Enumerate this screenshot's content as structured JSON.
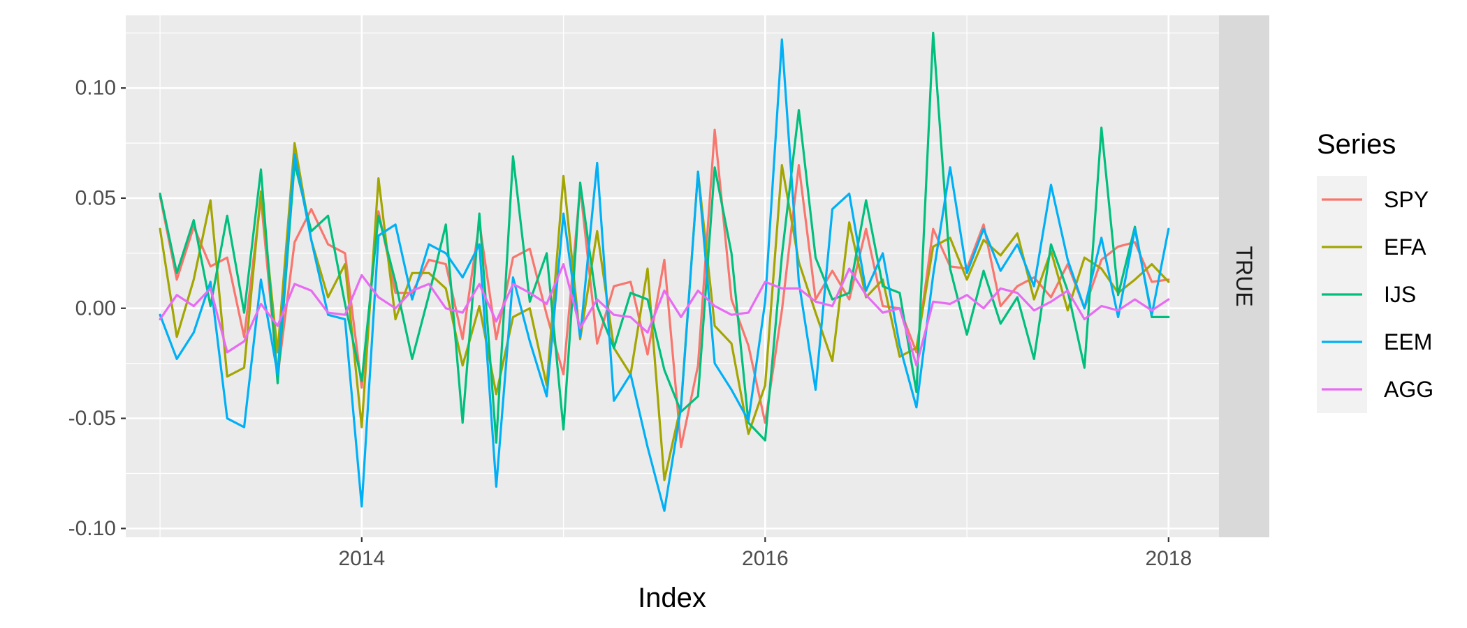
{
  "chart_data": {
    "type": "line",
    "xlabel": "Index",
    "ylabel": "",
    "facet_label": "TRUE",
    "legend_title": "Series",
    "legend_position": "right",
    "grid": true,
    "x_ticks": [
      2014,
      2016,
      2018
    ],
    "y_ticks": [
      -0.1,
      -0.05,
      0.0,
      0.05,
      0.1
    ],
    "y_tick_labels": [
      "-0.10",
      "-0.05",
      "0.00",
      "0.05",
      "0.10"
    ],
    "xlim": [
      2012.83,
      2018.25
    ],
    "ylim": [
      -0.104,
      0.133
    ],
    "x": [
      2013.0,
      2013.083,
      2013.167,
      2013.25,
      2013.333,
      2013.417,
      2013.5,
      2013.583,
      2013.667,
      2013.75,
      2013.833,
      2013.917,
      2014.0,
      2014.083,
      2014.167,
      2014.25,
      2014.333,
      2014.417,
      2014.5,
      2014.583,
      2014.667,
      2014.75,
      2014.833,
      2014.917,
      2015.0,
      2015.083,
      2015.167,
      2015.25,
      2015.333,
      2015.417,
      2015.5,
      2015.583,
      2015.667,
      2015.75,
      2015.833,
      2015.917,
      2016.0,
      2016.083,
      2016.167,
      2016.25,
      2016.333,
      2016.417,
      2016.5,
      2016.583,
      2016.667,
      2016.75,
      2016.833,
      2016.917,
      2017.0,
      2017.083,
      2017.167,
      2017.25,
      2017.333,
      2017.417,
      2017.5,
      2017.583,
      2017.667,
      2017.75,
      2017.833,
      2017.917,
      2018.0
    ],
    "series": [
      {
        "name": "SPY",
        "color": "#F8766D",
        "values": [
          0.051,
          0.013,
          0.037,
          0.019,
          0.023,
          -0.013,
          0.05,
          -0.031,
          0.03,
          0.045,
          0.029,
          0.025,
          -0.036,
          0.044,
          0.007,
          0.007,
          0.022,
          0.02,
          -0.014,
          0.039,
          -0.014,
          0.023,
          0.027,
          -0.003,
          -0.03,
          0.055,
          -0.016,
          0.01,
          0.012,
          -0.021,
          0.022,
          -0.063,
          -0.026,
          0.081,
          0.004,
          -0.017,
          -0.052,
          -0.001,
          0.065,
          0.004,
          0.017,
          0.004,
          0.036,
          0.001,
          0.0,
          -0.02,
          0.036,
          0.019,
          0.018,
          0.038,
          0.001,
          0.01,
          0.014,
          0.005,
          0.02,
          0.0,
          0.022,
          0.028,
          0.03,
          0.012,
          0.013
        ]
      },
      {
        "name": "EFA",
        "color": "#A3A500",
        "values": [
          0.036,
          -0.013,
          0.013,
          0.049,
          -0.031,
          -0.027,
          0.053,
          -0.02,
          0.075,
          0.031,
          0.005,
          0.02,
          -0.054,
          0.059,
          -0.005,
          0.016,
          0.016,
          0.009,
          -0.026,
          0.001,
          -0.039,
          -0.004,
          0.0,
          -0.035,
          0.06,
          -0.014,
          0.035,
          -0.018,
          -0.03,
          0.018,
          -0.078,
          -0.044,
          0.062,
          -0.008,
          -0.016,
          -0.057,
          -0.035,
          0.065,
          0.021,
          -0.002,
          -0.024,
          0.039,
          0.005,
          0.013,
          -0.022,
          -0.018,
          0.028,
          0.032,
          0.013,
          0.031,
          0.024,
          0.034,
          0.004,
          0.026,
          -0.001,
          0.023,
          0.018,
          0.007,
          0.013,
          0.02,
          0.012
        ]
      },
      {
        "name": "IJS",
        "color": "#00BF7D",
        "values": [
          0.052,
          0.016,
          0.04,
          0.001,
          0.042,
          -0.002,
          0.063,
          -0.034,
          0.066,
          0.035,
          0.042,
          0.002,
          -0.033,
          0.042,
          0.012,
          -0.023,
          0.006,
          0.038,
          -0.052,
          0.043,
          -0.061,
          0.069,
          0.003,
          0.025,
          -0.055,
          0.057,
          0.001,
          -0.018,
          0.007,
          0.004,
          -0.028,
          -0.047,
          -0.04,
          0.064,
          0.025,
          -0.052,
          -0.06,
          0.024,
          0.09,
          0.023,
          0.004,
          0.007,
          0.049,
          0.01,
          0.007,
          -0.038,
          0.125,
          0.018,
          -0.012,
          0.017,
          -0.007,
          0.005,
          -0.023,
          0.029,
          0.008,
          -0.027,
          0.082,
          0.006,
          0.037,
          -0.004,
          -0.004
        ]
      },
      {
        "name": "EEM",
        "color": "#00B0F6",
        "values": [
          -0.003,
          -0.023,
          -0.011,
          0.012,
          -0.05,
          -0.054,
          0.013,
          -0.03,
          0.07,
          0.031,
          -0.003,
          -0.005,
          -0.09,
          0.033,
          0.038,
          0.004,
          0.029,
          0.025,
          0.014,
          0.029,
          -0.081,
          0.014,
          -0.015,
          -0.04,
          0.043,
          -0.013,
          0.066,
          -0.042,
          -0.03,
          -0.063,
          -0.092,
          -0.045,
          0.062,
          -0.025,
          -0.037,
          -0.051,
          0.003,
          0.122,
          0.012,
          -0.037,
          0.045,
          0.052,
          0.008,
          0.025,
          -0.017,
          -0.045,
          0.015,
          0.064,
          0.016,
          0.036,
          0.017,
          0.029,
          0.01,
          0.056,
          0.022,
          0.0,
          0.032,
          -0.004,
          0.036,
          -0.003,
          0.036
        ]
      },
      {
        "name": "AGG",
        "color": "#E76BF3",
        "values": [
          -0.005,
          0.006,
          0.001,
          0.009,
          -0.02,
          -0.015,
          0.002,
          -0.008,
          0.011,
          0.008,
          -0.002,
          -0.003,
          0.015,
          0.005,
          0.0,
          0.008,
          0.011,
          0.0,
          -0.002,
          0.011,
          -0.006,
          0.011,
          0.007,
          0.002,
          0.02,
          -0.009,
          0.004,
          -0.003,
          -0.004,
          -0.011,
          0.008,
          -0.004,
          0.008,
          0.001,
          -0.003,
          -0.002,
          0.012,
          0.009,
          0.009,
          0.003,
          0.001,
          0.018,
          0.006,
          -0.002,
          0.0,
          -0.026,
          0.003,
          0.002,
          0.006,
          0.0,
          0.009,
          0.007,
          -0.001,
          0.003,
          0.008,
          -0.005,
          0.001,
          -0.001,
          0.004,
          -0.001,
          0.004
        ]
      }
    ]
  }
}
